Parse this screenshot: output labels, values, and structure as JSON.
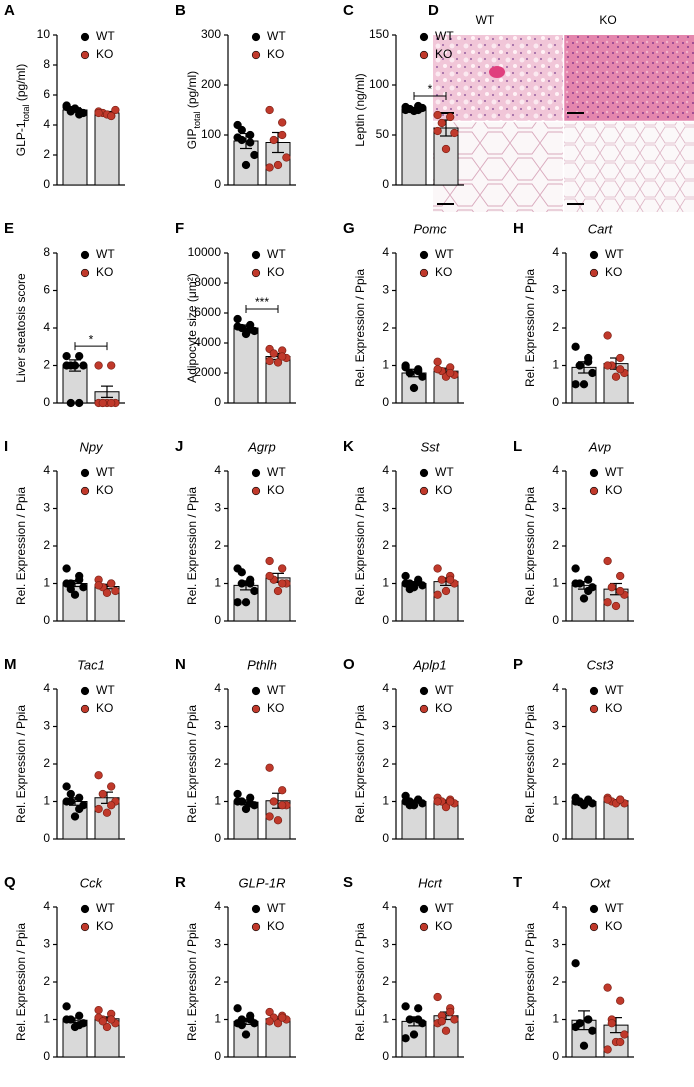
{
  "chart_data": [
    {
      "type": "bar",
      "panel": "A",
      "ylabel": [
        "GLP-1",
        "total",
        " (pg/ml)"
      ],
      "categories": [
        "WT",
        "KO"
      ],
      "colors": [
        "#000000",
        "#c0392b"
      ],
      "values": [
        5.0,
        4.8
      ],
      "errors": [
        0.15,
        0.1
      ],
      "points": [
        [
          5.2,
          4.9,
          5.0,
          4.8,
          5.1,
          5.3,
          4.7,
          4.9
        ],
        [
          4.9,
          4.6,
          4.8,
          5.0,
          4.7,
          4.8,
          4.6
        ]
      ],
      "ylim": [
        0,
        10
      ],
      "yticks": [
        0,
        2,
        4,
        6,
        8,
        10
      ]
    },
    {
      "type": "bar",
      "panel": "B",
      "ylabel": [
        "GIP",
        "total",
        " (pg/ml)"
      ],
      "categories": [
        "WT",
        "KO"
      ],
      "colors": [
        "#000000",
        "#c0392b"
      ],
      "values": [
        88,
        85
      ],
      "errors": [
        15,
        20
      ],
      "points": [
        [
          120,
          100,
          90,
          60,
          40,
          95,
          85,
          110
        ],
        [
          150,
          125,
          90,
          55,
          40,
          35,
          100
        ]
      ],
      "ylim": [
        0,
        300
      ],
      "yticks": [
        0,
        100,
        200,
        300
      ]
    },
    {
      "type": "bar",
      "panel": "C",
      "ylabel": "Leptin (ng/ml)",
      "categories": [
        "WT",
        "KO"
      ],
      "colors": [
        "#000000",
        "#c0392b"
      ],
      "values": [
        76,
        57
      ],
      "errors": [
        1.5,
        8
      ],
      "points": [
        [
          78,
          75,
          76,
          77,
          74,
          75,
          79
        ],
        [
          70,
          68,
          62,
          52,
          36,
          54
        ]
      ],
      "ylim": [
        0,
        150
      ],
      "yticks": [
        0,
        50,
        100,
        150
      ],
      "significance": "*"
    },
    {
      "type": "bar",
      "panel": "E",
      "ylabel": "Liver steatosis score",
      "categories": [
        "WT",
        "KO"
      ],
      "colors": [
        "#000000",
        "#c0392b"
      ],
      "values": [
        2.0,
        0.6
      ],
      "errors": [
        0.3,
        0.3
      ],
      "points": [
        [
          2.5,
          2.5,
          2,
          2,
          2,
          2,
          0,
          0
        ],
        [
          2,
          2,
          0,
          0,
          0,
          0,
          0,
          0
        ]
      ],
      "ylim": [
        0,
        8
      ],
      "yticks": [
        0,
        2,
        4,
        6,
        8
      ],
      "significance": "*"
    },
    {
      "type": "bar",
      "panel": "F",
      "ylabel": "Adipocyte size (μm²)",
      "categories": [
        "WT",
        "KO"
      ],
      "colors": [
        "#000000",
        "#c0392b"
      ],
      "values": [
        5000,
        3100
      ],
      "errors": [
        200,
        200
      ],
      "points": [
        [
          5600,
          5200,
          5000,
          4800,
          4600,
          5100,
          4900
        ],
        [
          3600,
          3500,
          3300,
          3000,
          2700,
          2800,
          3100
        ]
      ],
      "ylim": [
        0,
        10000
      ],
      "yticks": [
        0,
        2000,
        4000,
        6000,
        8000,
        10000
      ],
      "significance": "***"
    },
    {
      "type": "bar",
      "panel": "G",
      "title": "Pomc",
      "ylabel": "Rel. Expression / Ppia",
      "categories": [
        "WT",
        "KO"
      ],
      "colors": [
        "#000000",
        "#c0392b"
      ],
      "values": [
        0.8,
        0.85
      ],
      "errors": [
        0.1,
        0.08
      ],
      "points": [
        [
          1.0,
          0.9,
          0.8,
          0.7,
          0.4,
          0.95,
          0.85
        ],
        [
          1.1,
          0.95,
          0.85,
          0.75,
          0.7,
          0.9,
          0.8
        ]
      ],
      "ylim": [
        0,
        4
      ],
      "yticks": [
        0,
        1,
        2,
        3,
        4
      ]
    },
    {
      "type": "bar",
      "panel": "H",
      "title": "Cart",
      "ylabel": "Rel. Expression / Ppia",
      "categories": [
        "WT",
        "KO"
      ],
      "colors": [
        "#000000",
        "#c0392b"
      ],
      "values": [
        0.95,
        1.05
      ],
      "errors": [
        0.15,
        0.15
      ],
      "points": [
        [
          1.5,
          1.2,
          1.0,
          0.8,
          0.5,
          0.5,
          1.1,
          1.0
        ],
        [
          1.8,
          1.2,
          1.0,
          0.8,
          0.7,
          1.0,
          0.9
        ]
      ],
      "ylim": [
        0,
        4
      ],
      "yticks": [
        0,
        1,
        2,
        3,
        4
      ]
    },
    {
      "type": "bar",
      "panel": "I",
      "title": "Npy",
      "ylabel": "Rel. Expression / Ppia",
      "categories": [
        "WT",
        "KO"
      ],
      "colors": [
        "#000000",
        "#c0392b"
      ],
      "values": [
        1.0,
        0.92
      ],
      "errors": [
        0.08,
        0.06
      ],
      "points": [
        [
          1.4,
          1.1,
          1.0,
          0.9,
          0.7,
          1.0,
          1.2,
          0.85
        ],
        [
          1.1,
          1.0,
          0.9,
          0.8,
          0.75,
          0.95,
          1.0
        ]
      ],
      "ylim": [
        0,
        4
      ],
      "yticks": [
        0,
        1,
        2,
        3,
        4
      ]
    },
    {
      "type": "bar",
      "panel": "J",
      "title": "Agrp",
      "ylabel": "Rel. Expression / Ppia",
      "categories": [
        "WT",
        "KO"
      ],
      "colors": [
        "#000000",
        "#c0392b"
      ],
      "values": [
        0.95,
        1.15
      ],
      "errors": [
        0.12,
        0.12
      ],
      "points": [
        [
          1.4,
          1.1,
          1.0,
          0.8,
          0.5,
          0.5,
          1.0,
          1.3
        ],
        [
          1.6,
          1.4,
          1.1,
          1.0,
          0.8,
          1.2,
          1.0
        ]
      ],
      "ylim": [
        0,
        4
      ],
      "yticks": [
        0,
        1,
        2,
        3,
        4
      ]
    },
    {
      "type": "bar",
      "panel": "K",
      "title": "Sst",
      "ylabel": "Rel. Expression / Ppia",
      "categories": [
        "WT",
        "KO"
      ],
      "colors": [
        "#000000",
        "#c0392b"
      ],
      "values": [
        1.0,
        1.05
      ],
      "errors": [
        0.05,
        0.1
      ],
      "points": [
        [
          1.2,
          1.05,
          1.0,
          0.95,
          0.9,
          1.0,
          1.1,
          0.85
        ],
        [
          1.4,
          1.2,
          1.1,
          1.0,
          0.8,
          0.7,
          1.1
        ]
      ],
      "ylim": [
        0,
        4
      ],
      "yticks": [
        0,
        1,
        2,
        3,
        4
      ]
    },
    {
      "type": "bar",
      "panel": "L",
      "title": "Avp",
      "ylabel": "Rel. Expression / Ppia",
      "categories": [
        "WT",
        "KO"
      ],
      "colors": [
        "#000000",
        "#c0392b"
      ],
      "values": [
        0.95,
        0.85
      ],
      "errors": [
        0.1,
        0.15
      ],
      "points": [
        [
          1.4,
          1.1,
          1.0,
          0.9,
          0.6,
          1.0,
          0.8
        ],
        [
          1.6,
          1.2,
          0.9,
          0.7,
          0.4,
          0.5,
          0.8
        ]
      ],
      "ylim": [
        0,
        4
      ],
      "yticks": [
        0,
        1,
        2,
        3,
        4
      ]
    },
    {
      "type": "bar",
      "panel": "M",
      "title": "Tac1",
      "ylabel": "Rel. Expression / Ppia",
      "categories": [
        "WT",
        "KO"
      ],
      "colors": [
        "#000000",
        "#c0392b"
      ],
      "values": [
        1.0,
        1.1
      ],
      "errors": [
        0.1,
        0.15
      ],
      "points": [
        [
          1.4,
          1.1,
          1.0,
          0.9,
          0.6,
          1.0,
          0.8,
          1.2
        ],
        [
          1.7,
          1.4,
          1.2,
          1.0,
          0.7,
          0.8,
          0.9
        ]
      ],
      "ylim": [
        0,
        4
      ],
      "yticks": [
        0,
        1,
        2,
        3,
        4
      ]
    },
    {
      "type": "bar",
      "panel": "N",
      "title": "Pthlh",
      "ylabel": "Rel. Expression / Ppia",
      "categories": [
        "WT",
        "KO"
      ],
      "colors": [
        "#000000",
        "#c0392b"
      ],
      "values": [
        0.98,
        1.02
      ],
      "errors": [
        0.06,
        0.2
      ],
      "points": [
        [
          1.2,
          1.1,
          1.0,
          0.9,
          0.8,
          1.0,
          0.95,
          1.0
        ],
        [
          1.9,
          1.3,
          1.0,
          0.9,
          0.5,
          0.6,
          0.9
        ]
      ],
      "ylim": [
        0,
        4
      ],
      "yticks": [
        0,
        1,
        2,
        3,
        4
      ]
    },
    {
      "type": "bar",
      "panel": "O",
      "title": "Aplp1",
      "ylabel": "Rel. Expression / Ppia",
      "categories": [
        "WT",
        "KO"
      ],
      "colors": [
        "#000000",
        "#c0392b"
      ],
      "values": [
        1.0,
        1.0
      ],
      "errors": [
        0.04,
        0.04
      ],
      "points": [
        [
          1.15,
          1.05,
          1.0,
          0.95,
          0.9,
          1.0,
          1.05,
          0.9
        ],
        [
          1.1,
          1.05,
          1.0,
          0.95,
          0.85,
          1.0,
          1.0
        ]
      ],
      "ylim": [
        0,
        4
      ],
      "yticks": [
        0,
        1,
        2,
        3,
        4
      ]
    },
    {
      "type": "bar",
      "panel": "P",
      "title": "Cst3",
      "ylabel": "Rel. Expression / Ppia",
      "categories": [
        "WT",
        "KO"
      ],
      "colors": [
        "#000000",
        "#c0392b"
      ],
      "values": [
        1.0,
        1.02
      ],
      "errors": [
        0.03,
        0.03
      ],
      "points": [
        [
          1.1,
          1.05,
          1.0,
          0.95,
          0.9,
          1.0,
          1.0,
          0.98
        ],
        [
          1.1,
          1.05,
          1.0,
          0.95,
          0.95,
          1.05,
          1.05
        ]
      ],
      "ylim": [
        0,
        4
      ],
      "yticks": [
        0,
        1,
        2,
        3,
        4
      ]
    },
    {
      "type": "bar",
      "panel": "Q",
      "title": "Cck",
      "ylabel": "Rel. Expression / Ppia",
      "categories": [
        "WT",
        "KO"
      ],
      "colors": [
        "#000000",
        "#c0392b"
      ],
      "values": [
        0.98,
        1.02
      ],
      "errors": [
        0.06,
        0.05
      ],
      "points": [
        [
          1.35,
          1.1,
          1.0,
          0.9,
          0.8,
          1.0,
          0.85
        ],
        [
          1.25,
          1.15,
          1.0,
          0.9,
          0.8,
          1.05,
          1.0,
          0.95
        ]
      ],
      "ylim": [
        0,
        4
      ],
      "yticks": [
        0,
        1,
        2,
        3,
        4
      ]
    },
    {
      "type": "bar",
      "panel": "R",
      "title": "GLP-1R",
      "ylabel": "Rel. Expression / Ppia",
      "categories": [
        "WT",
        "KO"
      ],
      "colors": [
        "#000000",
        "#c0392b"
      ],
      "values": [
        0.95,
        1.02
      ],
      "errors": [
        0.08,
        0.05
      ],
      "points": [
        [
          1.3,
          1.1,
          1.0,
          0.9,
          0.6,
          0.9,
          1.0,
          0.85
        ],
        [
          1.2,
          1.1,
          1.05,
          1.0,
          0.9,
          0.95,
          1.05
        ]
      ],
      "ylim": [
        0,
        4
      ],
      "yticks": [
        0,
        1,
        2,
        3,
        4
      ]
    },
    {
      "type": "bar",
      "panel": "S",
      "title": "Hcrt",
      "ylabel": "Rel. Expression / Ppia",
      "categories": [
        "WT",
        "KO"
      ],
      "colors": [
        "#000000",
        "#c0392b"
      ],
      "values": [
        0.95,
        1.1
      ],
      "errors": [
        0.12,
        0.1
      ],
      "points": [
        [
          1.35,
          1.3,
          1.0,
          0.9,
          0.6,
          0.5,
          1.0
        ],
        [
          1.6,
          1.3,
          1.1,
          1.0,
          0.7,
          0.9,
          1.2,
          0.95
        ]
      ],
      "ylim": [
        0,
        4
      ],
      "yticks": [
        0,
        1,
        2,
        3,
        4
      ]
    },
    {
      "type": "bar",
      "panel": "T",
      "title": "Oxt",
      "ylabel": "Rel. Expression / Ppia",
      "categories": [
        "WT",
        "KO"
      ],
      "colors": [
        "#000000",
        "#c0392b"
      ],
      "values": [
        0.98,
        0.85
      ],
      "errors": [
        0.25,
        0.2
      ],
      "points": [
        [
          2.5,
          1.0,
          0.9,
          0.7,
          0.3,
          0.8,
          1.0
        ],
        [
          1.85,
          1.5,
          1.0,
          0.6,
          0.4,
          0.2,
          0.4,
          0.9
        ]
      ],
      "ylim": [
        0,
        4
      ],
      "yticks": [
        0,
        1,
        2,
        3,
        4
      ]
    }
  ],
  "histology": {
    "panel": "D",
    "labels": [
      "WT",
      "KO"
    ]
  }
}
